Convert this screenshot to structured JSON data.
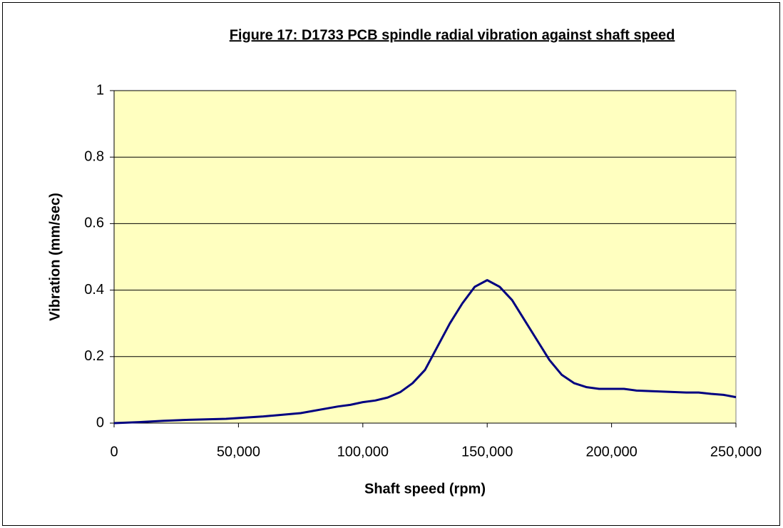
{
  "chart_data": {
    "type": "line",
    "title": "Figure 17: D1733 PCB spindle radial vibration against shaft speed",
    "x_label": "Shaft speed (rpm)",
    "y_label": "Vibration (mm/sec)",
    "x": [
      0,
      10000,
      20000,
      30000,
      45000,
      60000,
      75000,
      90000,
      95000,
      100000,
      105000,
      110000,
      115000,
      120000,
      125000,
      130000,
      135000,
      140000,
      145000,
      150000,
      155000,
      160000,
      165000,
      170000,
      175000,
      180000,
      185000,
      190000,
      195000,
      200000,
      205000,
      210000,
      220000,
      230000,
      235000,
      240000,
      245000,
      250000
    ],
    "series": [
      {
        "name": "Vibration",
        "color": "#000080",
        "values": [
          0,
          0.003,
          0.007,
          0.01,
          0.013,
          0.02,
          0.03,
          0.05,
          0.055,
          0.063,
          0.068,
          0.077,
          0.093,
          0.12,
          0.16,
          0.23,
          0.3,
          0.36,
          0.41,
          0.43,
          0.41,
          0.37,
          0.31,
          0.25,
          0.19,
          0.145,
          0.12,
          0.108,
          0.103,
          0.103,
          0.103,
          0.098,
          0.095,
          0.092,
          0.092,
          0.088,
          0.085,
          0.078
        ]
      }
    ],
    "xlim": [
      0,
      250000
    ],
    "xticks": [
      0,
      {
        "value": 50000,
        "label": "50,000"
      },
      {
        "value": 100000,
        "label": "100,000"
      },
      {
        "value": 150000,
        "label": "150,000"
      },
      {
        "value": 200000,
        "label": "200,000"
      },
      {
        "value": 250000,
        "label": "250,000"
      }
    ],
    "ylim": [
      0,
      1
    ],
    "yticks": [
      0,
      0.2,
      0.4,
      0.6,
      0.8,
      1
    ],
    "grid": true,
    "plot_background": "#ffffc0"
  }
}
